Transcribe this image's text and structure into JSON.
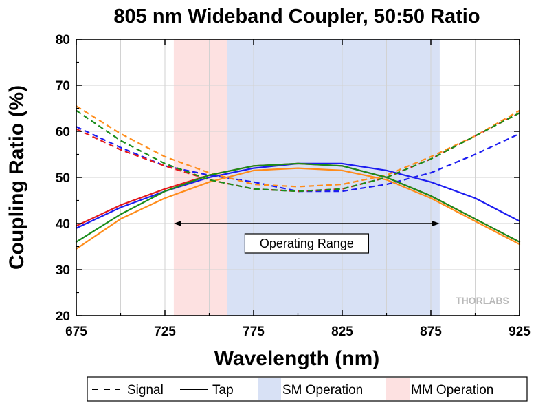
{
  "chart_data": {
    "type": "line",
    "title": "805 nm Wideband Coupler, 50:50 Ratio",
    "xlabel": "Wavelength (nm)",
    "ylabel": "Coupling Ratio (%)",
    "xlim": [
      675,
      925
    ],
    "ylim": [
      20,
      80
    ],
    "x_ticks": [
      675,
      725,
      775,
      825,
      875,
      925
    ],
    "y_ticks": [
      20,
      30,
      40,
      50,
      60,
      70,
      80
    ],
    "grid": true,
    "legend_position": "bottom",
    "legend": [
      {
        "label": "Signal",
        "style": "dashed"
      },
      {
        "label": "Tap",
        "style": "solid"
      },
      {
        "label": "SM Operation",
        "style": "region",
        "color": "#d8e1f5"
      },
      {
        "label": "MM Operation",
        "style": "region",
        "color": "#fde1e1"
      }
    ],
    "regions": [
      {
        "label": "MM Operation",
        "x_start": 730,
        "x_end": 760,
        "color": "#fde1e1"
      },
      {
        "label": "SM Operation",
        "x_start": 760,
        "x_end": 880,
        "color": "#d8e1f5"
      }
    ],
    "annotations": [
      {
        "text": "Operating Range",
        "x_start": 730,
        "x_end": 880,
        "y": 40
      }
    ],
    "watermark": "THORLABS",
    "series": [
      {
        "color": "#1c1cf0",
        "style": "dashed",
        "x": [
          675,
          700,
          725,
          750,
          775,
          800,
          825,
          850,
          875,
          900,
          925
        ],
        "y": [
          61,
          56.5,
          52.5,
          50.5,
          49,
          47,
          47,
          48.5,
          51,
          55,
          59.5
        ]
      },
      {
        "color": "#1c1cf0",
        "style": "solid",
        "x": [
          675,
          700,
          725,
          750,
          775,
          800,
          825,
          850,
          875,
          900,
          925
        ],
        "y": [
          39,
          43.5,
          47,
          50,
          52,
          53,
          53,
          51.5,
          49,
          45.5,
          40.5
        ]
      },
      {
        "color": "#e41a1c",
        "style": "dashed",
        "x": [
          675,
          700,
          725,
          750,
          775,
          800,
          825,
          850,
          875,
          900,
          925
        ],
        "y": [
          60.5,
          56,
          52.5,
          49.5,
          47.5,
          47,
          47.5,
          50,
          54,
          59,
          64
        ]
      },
      {
        "color": "#e41a1c",
        "style": "solid",
        "x": [
          675,
          700,
          725,
          750,
          775,
          800,
          825,
          850,
          875,
          900,
          925
        ],
        "y": [
          39.5,
          44,
          47.5,
          50.5,
          52.5,
          53,
          52.5,
          50,
          46,
          41,
          36
        ]
      },
      {
        "color": "#ff8c1a",
        "style": "dashed",
        "x": [
          675,
          700,
          725,
          750,
          775,
          800,
          825,
          850,
          875,
          900,
          925
        ],
        "y": [
          65.5,
          59.5,
          54.5,
          51,
          48.5,
          48,
          48.5,
          50.5,
          54.5,
          59,
          64.5
        ]
      },
      {
        "color": "#ff8c1a",
        "style": "solid",
        "x": [
          675,
          700,
          725,
          750,
          775,
          800,
          825,
          850,
          875,
          900,
          925
        ],
        "y": [
          34.5,
          41,
          45.5,
          49,
          51.5,
          52,
          51.5,
          49.5,
          45.5,
          40.5,
          35.5
        ]
      },
      {
        "color": "#1a8c1a",
        "style": "dashed",
        "x": [
          675,
          700,
          725,
          750,
          775,
          800,
          825,
          850,
          875,
          900,
          925
        ],
        "y": [
          64.5,
          58,
          53,
          49.5,
          47.5,
          47,
          47.5,
          50,
          54,
          59,
          64
        ]
      },
      {
        "color": "#1a8c1a",
        "style": "solid",
        "x": [
          675,
          700,
          725,
          750,
          775,
          800,
          825,
          850,
          875,
          900,
          925
        ],
        "y": [
          36,
          42,
          47,
          50.5,
          52.5,
          53,
          52.5,
          50,
          46,
          41,
          36
        ]
      }
    ]
  }
}
